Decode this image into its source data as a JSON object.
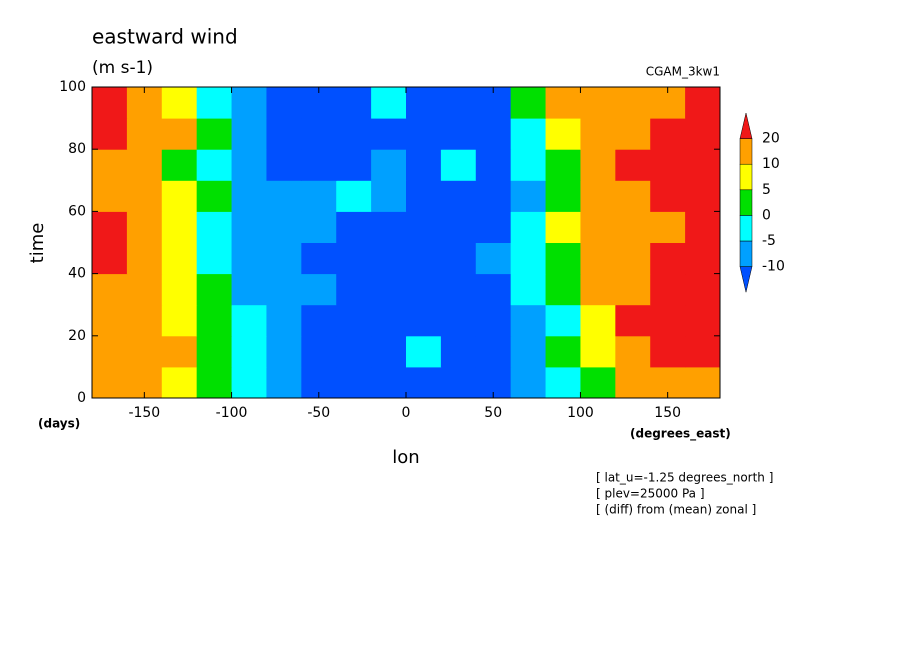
{
  "chart_data": {
    "type": "heatmap",
    "title": "eastward wind",
    "subtitle": "(m s-1)",
    "source_label": "CGAM_3kw1",
    "x_label": "lon",
    "y_label": "time",
    "y_unit": "(days)",
    "x_unit": "(degrees_east)",
    "notes": [
      "[ lat_u=-1.25 degrees_north ]",
      "[ plev=25000 Pa ]",
      "[ (diff) from (mean) zonal ]"
    ],
    "xlim": [
      -180,
      180
    ],
    "ylim": [
      0,
      100
    ],
    "xticks": [
      -150,
      -100,
      -50,
      0,
      50,
      100,
      150
    ],
    "yticks": [
      0,
      20,
      40,
      60,
      80,
      100
    ],
    "x": [
      -170,
      -150,
      -130,
      -110,
      -90,
      -70,
      -50,
      -30,
      -10,
      10,
      30,
      50,
      70,
      90,
      110,
      130,
      150,
      170
    ],
    "y": [
      5,
      15,
      25,
      35,
      45,
      55,
      65,
      75,
      85,
      95
    ],
    "z": [
      [
        15,
        12,
        8,
        3,
        -3,
        -6,
        -12,
        -12,
        -12,
        -12,
        -12,
        -12,
        -8,
        -3,
        4,
        12,
        15,
        15
      ],
      [
        18,
        15,
        10,
        4,
        -2,
        -7,
        -12,
        -12,
        -12,
        -3,
        -12,
        -12,
        -8,
        0,
        8,
        15,
        22,
        22
      ],
      [
        15,
        12,
        6,
        0,
        -4,
        -8,
        -12,
        -12,
        -12,
        -12,
        -12,
        -12,
        -7,
        -2,
        8,
        22,
        25,
        25
      ],
      [
        12,
        12,
        7,
        0,
        -6,
        -8,
        -9,
        -12,
        -12,
        -12,
        -12,
        -12,
        -5,
        0,
        12,
        18,
        22,
        22
      ],
      [
        22,
        15,
        6,
        -2,
        -6,
        -8,
        -12,
        -12,
        -12,
        -12,
        -12,
        -8,
        -4,
        4,
        12,
        15,
        22,
        22
      ],
      [
        22,
        12,
        6,
        -2,
        -7,
        -8,
        -8,
        -12,
        -12,
        -12,
        -12,
        -12,
        -3,
        6,
        12,
        15,
        18,
        20
      ],
      [
        15,
        12,
        8,
        0,
        -6,
        -8,
        -6,
        -4,
        -8,
        -12,
        -12,
        -12,
        -6,
        2,
        12,
        15,
        22,
        22
      ],
      [
        12,
        12,
        3,
        -4,
        -8,
        -12,
        -12,
        -12,
        -8,
        -12,
        -2,
        -12,
        -5,
        3,
        15,
        22,
        25,
        25
      ],
      [
        20,
        15,
        10,
        0,
        -8,
        -12,
        -12,
        -12,
        -12,
        -12,
        -12,
        -12,
        -5,
        6,
        15,
        18,
        25,
        25
      ],
      [
        22,
        15,
        8,
        -2,
        -6,
        -12,
        -12,
        -12,
        -4,
        -12,
        -12,
        -12,
        0,
        12,
        18,
        18,
        15,
        22
      ]
    ],
    "levels": [
      -10,
      -5,
      0,
      5,
      10,
      20
    ],
    "colors": [
      "#0050ff",
      "#00a0ff",
      "#00ffff",
      "#00e000",
      "#ffff00",
      "#ffa000",
      "#f01818"
    ]
  }
}
